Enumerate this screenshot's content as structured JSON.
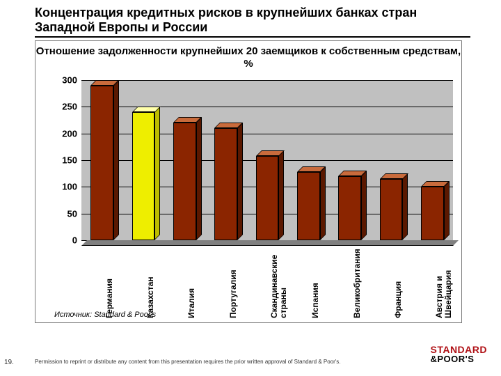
{
  "slide": {
    "title": "Концентрация кредитных рисков в крупнейших банках стран Западной Европы и России",
    "page_number": "19.",
    "footer": "Permission to reprint or distribute any content from this presentation requires the prior written approval of Standard & Poor's."
  },
  "chart": {
    "type": "bar-3d",
    "title": "Отношение задолженности крупнейших 20 заемщиков к собственным средствам, %",
    "categories": [
      "Германия",
      "Казахстан",
      "Италия",
      "Португалия",
      "Скандинавские\nстраны",
      "Испания",
      "Великобритания",
      "Франция",
      "Австрия и\nШвейцария"
    ],
    "values": [
      290,
      240,
      220,
      210,
      158,
      128,
      120,
      115,
      100
    ],
    "ylim": [
      0,
      300
    ],
    "yticks": [
      0,
      50,
      100,
      150,
      200,
      250,
      300
    ],
    "bar_colors_front": [
      "#8b2500",
      "#eeee00",
      "#8b2500",
      "#8b2500",
      "#8b2500",
      "#8b2500",
      "#8b2500",
      "#8b2500",
      "#8b2500"
    ],
    "bar_colors_top": [
      "#c96b3c",
      "#ffffaa",
      "#c96b3c",
      "#c96b3c",
      "#c96b3c",
      "#c96b3c",
      "#c96b3c",
      "#c96b3c",
      "#c96b3c"
    ],
    "bar_colors_side": [
      "#5a1800",
      "#bdbd00",
      "#5a1800",
      "#5a1800",
      "#5a1800",
      "#5a1800",
      "#5a1800",
      "#5a1800",
      "#5a1800"
    ],
    "plot_background": "#c0c0c0",
    "grid_color": "#000000",
    "bar_width_ratio": 0.55,
    "tick_fontsize": 13,
    "xlabel_fontsize": 12,
    "title_fontsize": 15,
    "source": "Источник: Standard & Poor's"
  },
  "logo": {
    "line1": "STANDARD",
    "line2": "&POOR'S"
  }
}
